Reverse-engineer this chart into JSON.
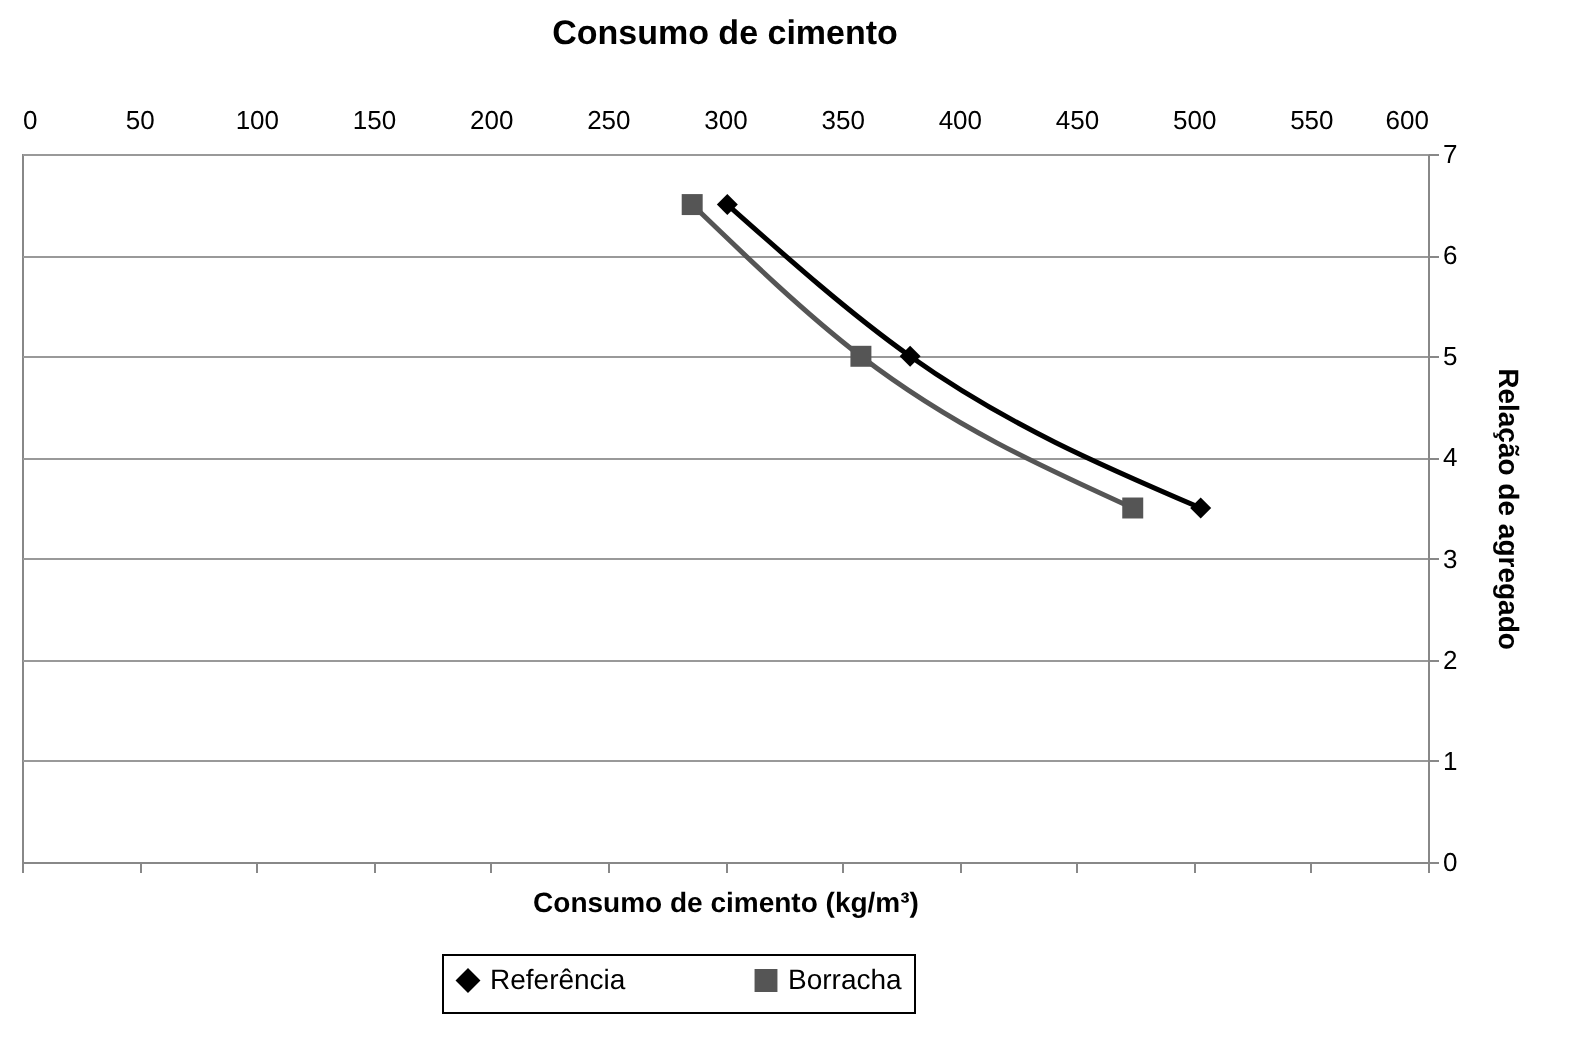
{
  "chart_data": {
    "type": "line",
    "title": "Consumo de cimento",
    "xlabel": "Consumo de cimento (kg/m³)",
    "ylabel": "Relação de agregado",
    "xlim": [
      0,
      600
    ],
    "xticks": [
      0,
      50,
      100,
      150,
      200,
      250,
      300,
      350,
      400,
      450,
      500,
      550,
      600
    ],
    "ylim": [
      0,
      7
    ],
    "yticks": [
      0,
      1,
      2,
      3,
      4,
      5,
      6,
      7
    ],
    "grid": "y",
    "legend": "bottom",
    "series": [
      {
        "name": "Referência",
        "color": "#000000",
        "marker": "diamond",
        "x": [
          301,
          379,
          503
        ],
        "values": [
          6.5,
          5,
          3.5
        ]
      },
      {
        "name": "Borracha",
        "color": "#555555",
        "marker": "square",
        "x": [
          286,
          358,
          474
        ],
        "values": [
          6.5,
          5,
          3.5
        ]
      }
    ]
  }
}
